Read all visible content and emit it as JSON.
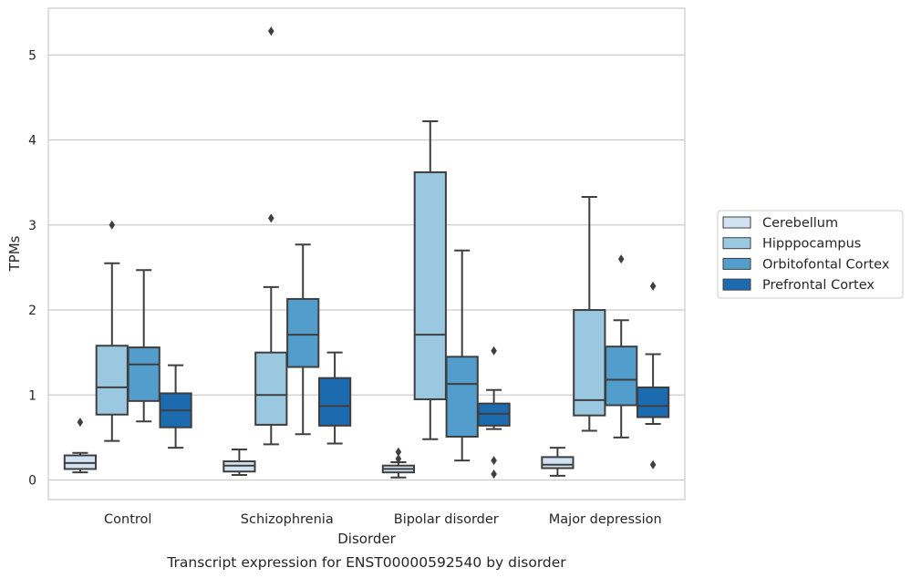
{
  "chart_data": {
    "type": "box",
    "caption": "Transcript expression for ENST00000592540 by disorder",
    "xlabel": "Disorder",
    "ylabel": "TPMs",
    "ylim": [
      -0.23,
      5.55
    ],
    "yticks": [
      0,
      1,
      2,
      3,
      4,
      5
    ],
    "grid": "horizontal",
    "legend_position": "right",
    "categories": [
      "Control",
      "Schizophrenia",
      "Bipolar disorder",
      "Major depression"
    ],
    "series": [
      {
        "name": "Cerebellum",
        "color": "#d1e2f2",
        "boxes": [
          {
            "whislo": 0.09,
            "q1": 0.13,
            "med": 0.2,
            "q3": 0.29,
            "whishi": 0.32,
            "fliers": [
              0.68
            ]
          },
          {
            "whislo": 0.06,
            "q1": 0.1,
            "med": 0.17,
            "q3": 0.22,
            "whishi": 0.36,
            "fliers": []
          },
          {
            "whislo": 0.03,
            "q1": 0.09,
            "med": 0.13,
            "q3": 0.17,
            "whishi": 0.21,
            "fliers": [
              0.25,
              0.33
            ]
          },
          {
            "whislo": 0.05,
            "q1": 0.14,
            "med": 0.18,
            "q3": 0.27,
            "whishi": 0.38,
            "fliers": []
          }
        ]
      },
      {
        "name": "Hipppocampus",
        "color": "#9ac8e0",
        "boxes": [
          {
            "whislo": 0.46,
            "q1": 0.77,
            "med": 1.09,
            "q3": 1.58,
            "whishi": 2.55,
            "fliers": [
              3.0
            ]
          },
          {
            "whislo": 0.42,
            "q1": 0.65,
            "med": 1.0,
            "q3": 1.5,
            "whishi": 2.27,
            "fliers": [
              3.08,
              5.28
            ]
          },
          {
            "whislo": 0.48,
            "q1": 0.95,
            "med": 1.71,
            "q3": 3.62,
            "whishi": 4.22,
            "fliers": []
          },
          {
            "whislo": 0.58,
            "q1": 0.76,
            "med": 0.94,
            "q3": 2.0,
            "whishi": 3.33,
            "fliers": []
          }
        ]
      },
      {
        "name": "Orbitofontal Cortex",
        "color": "#529dcc",
        "boxes": [
          {
            "whislo": 0.69,
            "q1": 0.93,
            "med": 1.36,
            "q3": 1.56,
            "whishi": 2.47,
            "fliers": []
          },
          {
            "whislo": 0.54,
            "q1": 1.33,
            "med": 1.71,
            "q3": 2.13,
            "whishi": 2.77,
            "fliers": []
          },
          {
            "whislo": 0.23,
            "q1": 0.51,
            "med": 1.13,
            "q3": 1.45,
            "whishi": 2.7,
            "fliers": []
          },
          {
            "whislo": 0.5,
            "q1": 0.88,
            "med": 1.18,
            "q3": 1.57,
            "whishi": 1.88,
            "fliers": [
              2.6
            ]
          }
        ]
      },
      {
        "name": "Prefrontal Cortex",
        "color": "#1c6aaf",
        "boxes": [
          {
            "whislo": 0.38,
            "q1": 0.62,
            "med": 0.82,
            "q3": 1.02,
            "whishi": 1.35,
            "fliers": []
          },
          {
            "whislo": 0.43,
            "q1": 0.64,
            "med": 0.87,
            "q3": 1.2,
            "whishi": 1.5,
            "fliers": []
          },
          {
            "whislo": 0.6,
            "q1": 0.64,
            "med": 0.78,
            "q3": 0.9,
            "whishi": 1.06,
            "fliers": [
              0.07,
              0.23,
              1.52
            ]
          },
          {
            "whislo": 0.66,
            "q1": 0.74,
            "med": 0.87,
            "q3": 1.09,
            "whishi": 1.48,
            "fliers": [
              0.18,
              2.28
            ]
          }
        ]
      }
    ]
  }
}
